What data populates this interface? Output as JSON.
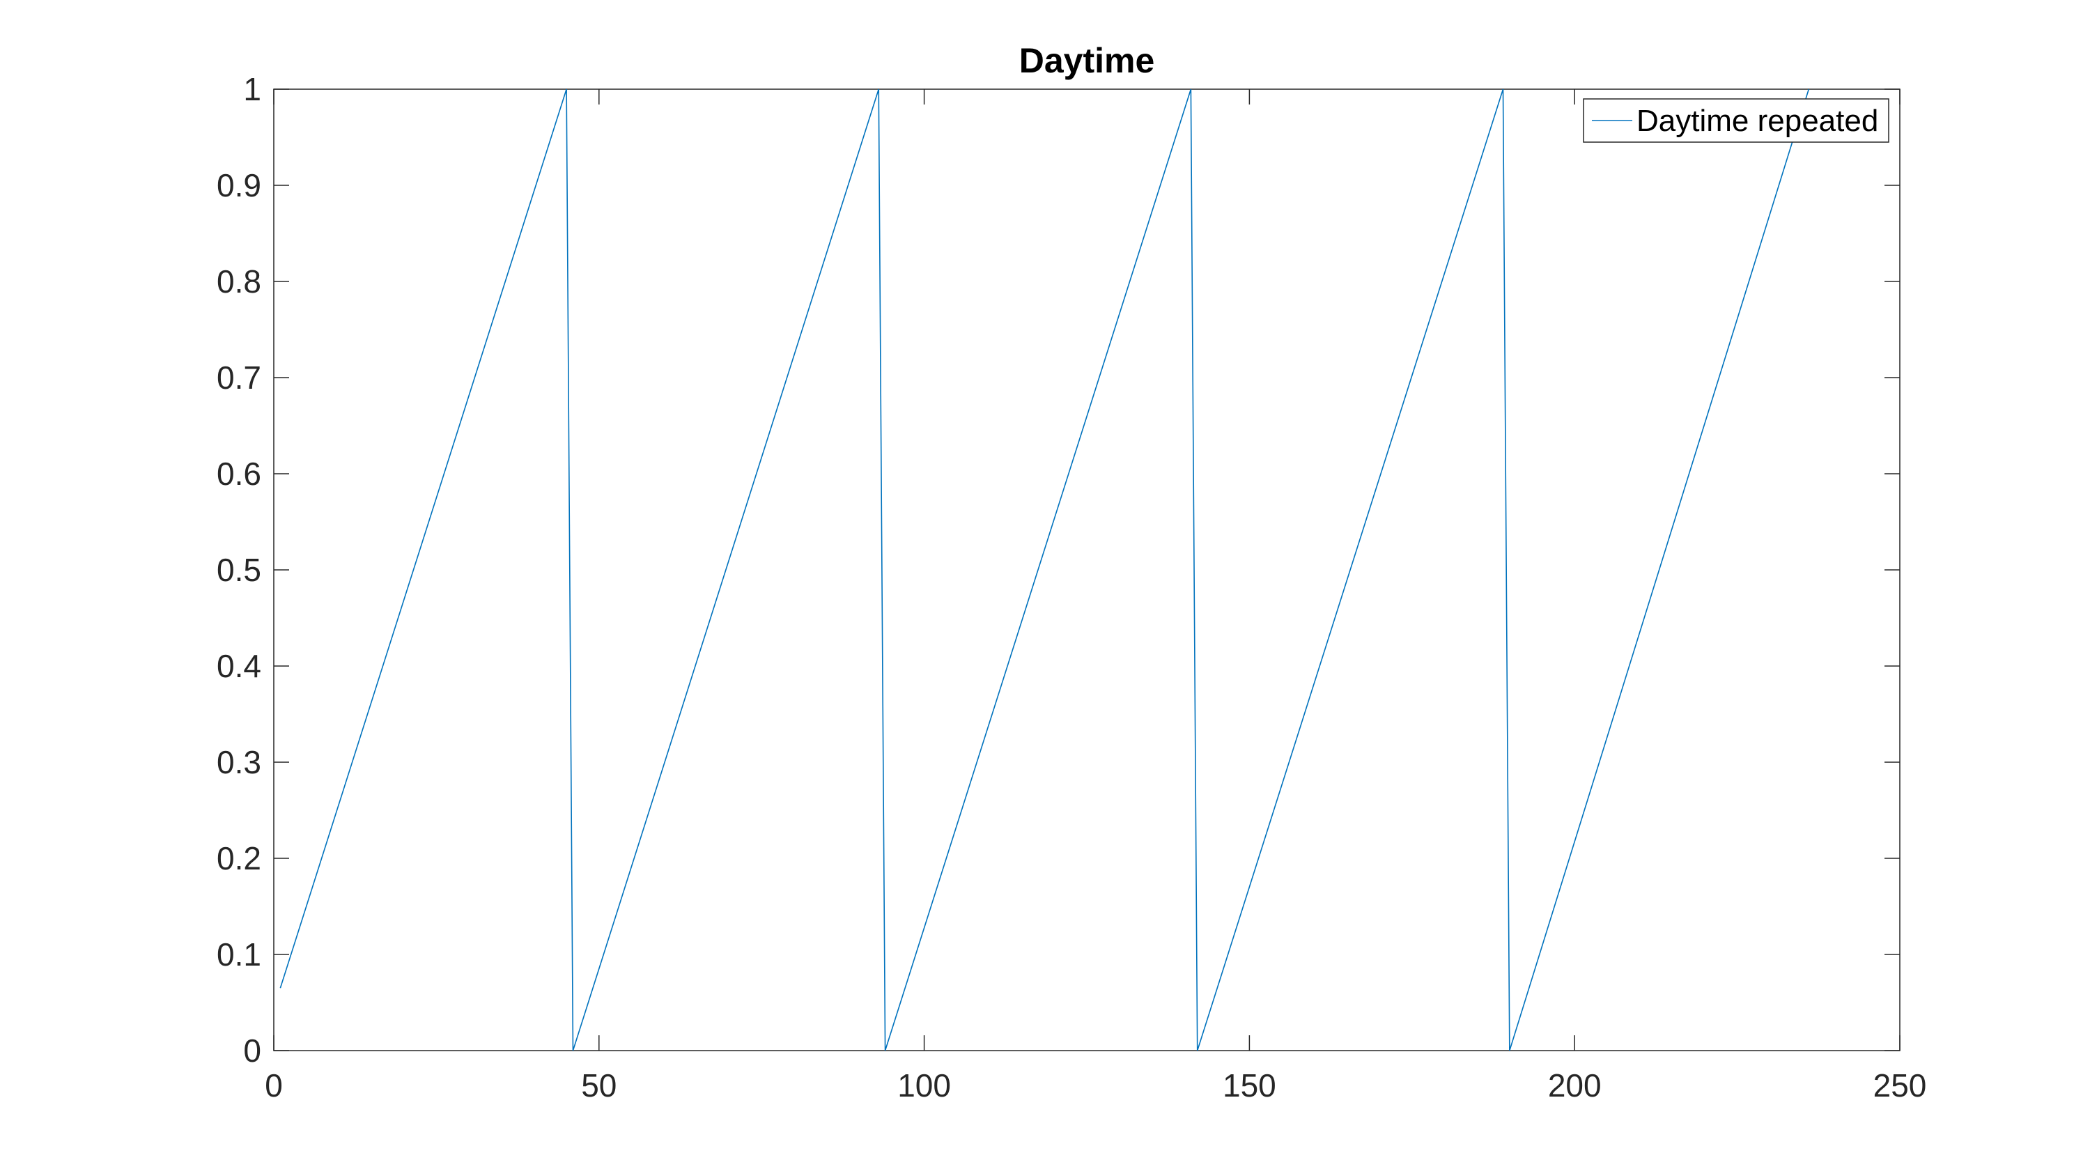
{
  "chart_data": {
    "type": "line",
    "title": "Daytime",
    "xlabel": "",
    "ylabel": "",
    "xlim": [
      0,
      250
    ],
    "ylim": [
      0,
      1
    ],
    "x_ticks": [
      0,
      50,
      100,
      150,
      200,
      250
    ],
    "y_ticks": [
      0,
      0.1,
      0.2,
      0.3,
      0.4,
      0.5,
      0.6,
      0.7,
      0.8,
      0.9,
      1
    ],
    "x_tick_labels": [
      "0",
      "50",
      "100",
      "150",
      "200",
      "250"
    ],
    "y_tick_labels": [
      "0",
      "0.1",
      "0.2",
      "0.3",
      "0.4",
      "0.5",
      "0.6",
      "0.7",
      "0.8",
      "0.9",
      "1"
    ],
    "grid": false,
    "legend_position": "top-right",
    "series": [
      {
        "name": "Daytime repeated",
        "color": "#0072BD",
        "x": [
          1,
          45,
          46,
          93,
          94,
          141,
          142,
          189,
          190,
          236
        ],
        "y": [
          0.065,
          1,
          0,
          1,
          0,
          1,
          0,
          1,
          0,
          1
        ]
      }
    ]
  },
  "colors": {
    "axes": "#262626",
    "series": "#0072BD",
    "background": "#ffffff"
  }
}
